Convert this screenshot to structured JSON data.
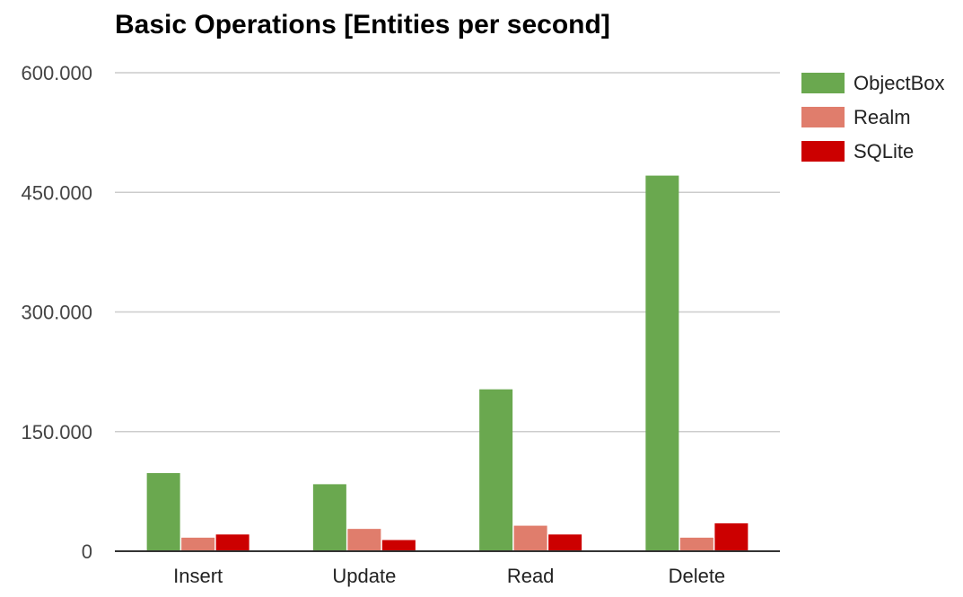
{
  "chart_data": {
    "type": "bar",
    "title": "Basic Operations [Entities per second]",
    "xlabel": "",
    "ylabel": "",
    "categories": [
      "Insert",
      "Update",
      "Read",
      "Delete"
    ],
    "series": [
      {
        "name": "ObjectBox",
        "color": "#6aa84f",
        "values": [
          98000,
          84000,
          203000,
          471000
        ]
      },
      {
        "name": "Realm",
        "color": "#e07d6c",
        "values": [
          17000,
          28000,
          32000,
          17000
        ]
      },
      {
        "name": "SQLite",
        "color": "#cc0000",
        "values": [
          21000,
          14000,
          21000,
          35000
        ]
      }
    ],
    "ylim": [
      0,
      600000
    ],
    "yticks": [
      0,
      150000,
      300000,
      450000,
      600000
    ],
    "ytick_labels": [
      "0",
      "150.000",
      "300.000",
      "450.000",
      "600.000"
    ],
    "grid": true,
    "legend_position": "right"
  }
}
